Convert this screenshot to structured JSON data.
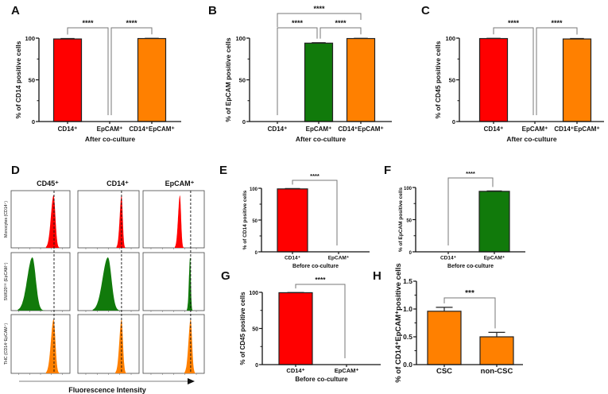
{
  "colors": {
    "red": "#ff0000",
    "green": "#117a0b",
    "orange": "#ff8000",
    "axis": "#111111",
    "bracket": "#777777"
  },
  "chart_data": [
    {
      "panel": "A",
      "type": "bar",
      "ylabel": "% of CD14 positive cells",
      "xlabel": "After co-culture",
      "categories": [
        "CD14⁺",
        "EpCAM⁺",
        "CD14⁺EpCAM⁺"
      ],
      "values": [
        99,
        0,
        99.5
      ],
      "errors": [
        0.5,
        0,
        0.3
      ],
      "bar_colors": [
        "red",
        "green",
        "orange"
      ],
      "ylim": [
        0,
        100
      ],
      "yticks": [
        0,
        50,
        100
      ],
      "ytick_labels": [
        "0",
        "50",
        "100"
      ],
      "significance": [
        {
          "from": 0,
          "to": 1,
          "label": "****",
          "level": 0
        },
        {
          "from": 1,
          "to": 2,
          "label": "****",
          "level": 0
        }
      ]
    },
    {
      "panel": "B",
      "type": "bar",
      "ylabel": "% of EpCAM positive cells",
      "xlabel": "After co-culture",
      "categories": [
        "CD14⁺",
        "EpCAM⁺",
        "CD14⁺EpCAM⁺"
      ],
      "values": [
        0,
        94,
        99.5
      ],
      "errors": [
        0,
        0.6,
        0.3
      ],
      "bar_colors": [
        "red",
        "green",
        "orange"
      ],
      "ylim": [
        0,
        100
      ],
      "yticks": [
        0,
        50,
        100
      ],
      "ytick_labels": [
        "0",
        "50",
        "100"
      ],
      "significance": [
        {
          "from": 0,
          "to": 1,
          "label": "****",
          "level": 0
        },
        {
          "from": 1,
          "to": 2,
          "label": "****",
          "level": 0
        },
        {
          "from": 0,
          "to": 2,
          "label": "****",
          "level": 1
        }
      ]
    },
    {
      "panel": "C",
      "type": "bar",
      "ylabel": "% of CD45 positive cells",
      "xlabel": "After co-culture",
      "categories": [
        "CD14⁺",
        "EpCAM⁺",
        "CD14⁺EpCAM⁺"
      ],
      "values": [
        99.5,
        0,
        99
      ],
      "errors": [
        0.3,
        0,
        0.5
      ],
      "bar_colors": [
        "red",
        "green",
        "orange"
      ],
      "ylim": [
        0,
        100
      ],
      "yticks": [
        0,
        50,
        100
      ],
      "ytick_labels": [
        "0",
        "50",
        "100"
      ],
      "significance": [
        {
          "from": 0,
          "to": 1,
          "label": "****",
          "level": 0
        },
        {
          "from": 1,
          "to": 2,
          "label": "****",
          "level": 0
        }
      ]
    },
    {
      "panel": "E",
      "type": "bar",
      "ylabel": "% of CD14 positive cells",
      "xlabel": "Before co-culture",
      "categories": [
        "CD14⁺",
        "EpCAM⁺"
      ],
      "values": [
        99,
        0
      ],
      "errors": [
        0.5,
        0
      ],
      "bar_colors": [
        "red",
        "green"
      ],
      "ylim": [
        0,
        100
      ],
      "yticks": [
        0,
        50,
        100
      ],
      "ytick_labels": [
        "0",
        "50",
        "100"
      ],
      "significance": [
        {
          "from": 0,
          "to": 1,
          "label": "****",
          "level": 0
        }
      ]
    },
    {
      "panel": "F",
      "type": "bar",
      "ylabel": "% of EpCAM positive cells",
      "xlabel": "Before co-culture",
      "categories": [
        "CD14⁺",
        "EpCAM⁺"
      ],
      "values": [
        0,
        94
      ],
      "errors": [
        0,
        0.6
      ],
      "bar_colors": [
        "red",
        "green"
      ],
      "ylim": [
        0,
        100
      ],
      "yticks": [
        0,
        50,
        100
      ],
      "ytick_labels": [
        "0",
        "50",
        "100"
      ],
      "significance": [
        {
          "from": 0,
          "to": 1,
          "label": "****",
          "level": 0
        }
      ]
    },
    {
      "panel": "G",
      "type": "bar",
      "ylabel": "% of CD45 positive cells",
      "xlabel": "Before co-culture",
      "categories": [
        "CD14⁺",
        "EpCAM⁺"
      ],
      "values": [
        99.5,
        0
      ],
      "errors": [
        0.3,
        0
      ],
      "bar_colors": [
        "red",
        "green"
      ],
      "ylim": [
        0,
        100
      ],
      "yticks": [
        0,
        50,
        100
      ],
      "ytick_labels": [
        "0",
        "50",
        "100"
      ],
      "significance": [
        {
          "from": 0,
          "to": 1,
          "label": "****",
          "level": 0
        }
      ]
    },
    {
      "panel": "H",
      "type": "bar",
      "ylabel": "% of CD14⁺EpCAM⁺positive cells",
      "xlabel": "",
      "categories": [
        "CSC",
        "non-CSC"
      ],
      "values": [
        0.96,
        0.5
      ],
      "errors": [
        0.07,
        0.08
      ],
      "bar_colors": [
        "orange",
        "orange"
      ],
      "ylim": [
        0,
        1.5
      ],
      "yticks": [
        0,
        0.5,
        1.0,
        1.5
      ],
      "ytick_labels": [
        "0.0",
        "0.5",
        "1.0",
        "1.5"
      ],
      "significance": [
        {
          "from": 0,
          "to": 1,
          "label": "***",
          "level": 0
        }
      ]
    }
  ],
  "flow_panel": {
    "panel": "D",
    "type": "histogram-grid",
    "column_headers": [
      "CD45⁺",
      "CD14⁺",
      "EpCAM⁺"
    ],
    "row_labels": [
      "Monocytes (CD14⁺)",
      "SW620ᶜˢᶜ (EpCAM⁺)",
      "THC (CD14⁺EpCAM⁺)"
    ],
    "row_colors": [
      "red",
      "green",
      "orange"
    ],
    "x_axis_label": "Fluorescence Intensity",
    "x_scale": "log",
    "gate_log10": [
      4.24,
      4.15,
      4.5
    ],
    "peaks_log10": [
      [
        4.2,
        4.15,
        3.55
      ],
      [
        2.25,
        2.95,
        4.45
      ],
      [
        4.2,
        4.15,
        4.5
      ]
    ],
    "spread_log10": [
      [
        0.22,
        0.14,
        0.14
      ],
      [
        0.42,
        0.42,
        0.09
      ],
      [
        0.22,
        0.17,
        0.17
      ]
    ]
  }
}
